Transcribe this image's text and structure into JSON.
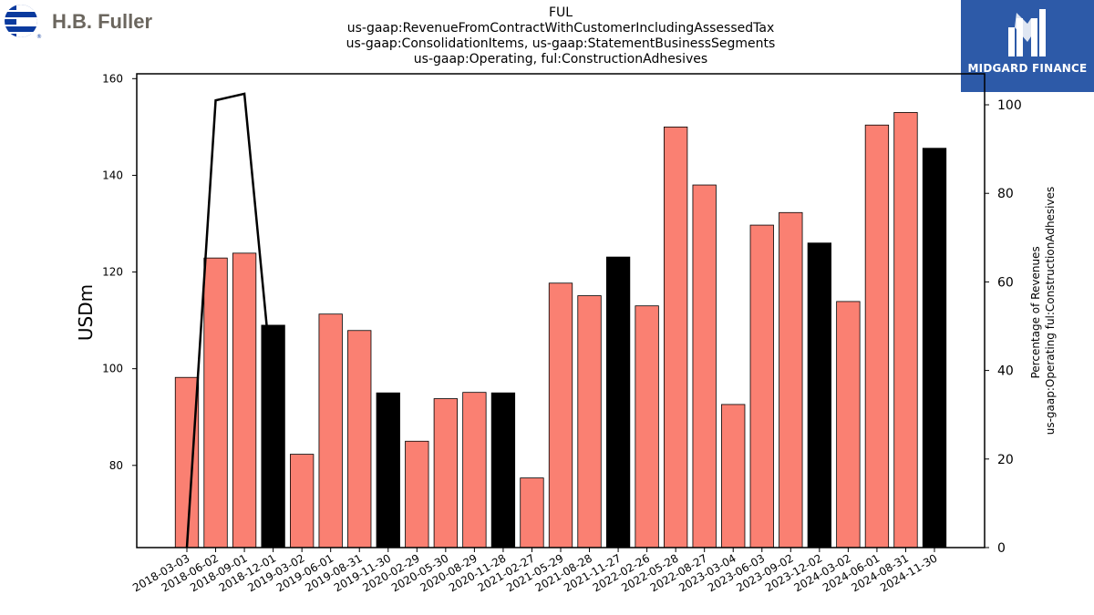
{
  "header": {
    "company_logo_text": "H.B. Fuller",
    "sponsor_logo_text": "MIDGARD FINANCE"
  },
  "colors": {
    "bar_default": "#fa8072",
    "bar_highlight": "#000000",
    "line": "#000000",
    "sponsor_bg": "#2d5aa8",
    "company_blue": "#0a3a9e",
    "company_text": "#6b665e"
  },
  "chart_data": {
    "type": "bar",
    "title_lines": [
      "FUL",
      "us-gaap:RevenueFromContractWithCustomerIncludingAssessedTax",
      "us-gaap:ConsolidationItems, us-gaap:StatementBusinessSegments",
      "us-gaap:Operating, ful:ConstructionAdhesives"
    ],
    "ylabel": "USDm",
    "y2label_lines": [
      "Percentage of Revenues",
      "us-gaap:Operating ful:ConstructionAdhesives"
    ],
    "ylim": [
      63,
      161
    ],
    "y_ticks": [
      80,
      100,
      120,
      140,
      160
    ],
    "y2lim": [
      0,
      107
    ],
    "y2_ticks": [
      0,
      20,
      40,
      60,
      80,
      100
    ],
    "categories": [
      "2018-03-03",
      "2018-06-02",
      "2018-09-01",
      "2018-12-01",
      "2019-03-02",
      "2019-06-01",
      "2019-08-31",
      "2019-11-30",
      "2020-02-29",
      "2020-05-30",
      "2020-08-29",
      "2020-11-28",
      "2021-02-27",
      "2021-05-29",
      "2021-08-28",
      "2021-11-27",
      "2022-02-26",
      "2022-05-28",
      "2022-08-27",
      "2023-03-04",
      "2023-06-03",
      "2023-09-02",
      "2023-12-02",
      "2024-03-02",
      "2024-06-01",
      "2024-08-31",
      "2024-11-30"
    ],
    "values": [
      98.2,
      122.9,
      123.9,
      109.0,
      82.3,
      111.3,
      107.9,
      95.0,
      85.0,
      93.8,
      95.1,
      95.0,
      77.4,
      117.7,
      115.1,
      123.1,
      113.0,
      150.0,
      138.0,
      92.6,
      129.7,
      132.3,
      126.0,
      113.9,
      150.4,
      153.0,
      145.6
    ],
    "highlight": [
      false,
      false,
      false,
      true,
      false,
      false,
      false,
      true,
      false,
      false,
      false,
      true,
      false,
      false,
      false,
      true,
      false,
      false,
      false,
      false,
      false,
      false,
      true,
      false,
      false,
      false,
      true
    ],
    "line_series": {
      "x_index": [
        0,
        1,
        2,
        3
      ],
      "values": [
        0,
        101,
        102.5,
        35
      ]
    },
    "grid": false
  }
}
